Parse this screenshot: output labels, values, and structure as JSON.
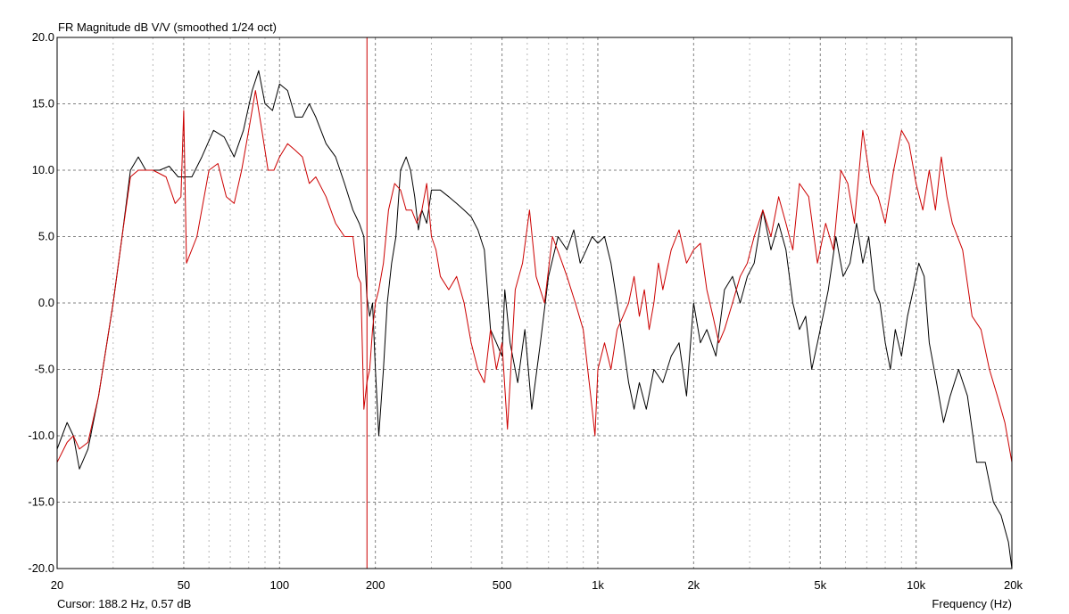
{
  "chart_data": {
    "type": "line",
    "title": "FR Magnitude dB V/V (smoothed 1/24 oct)",
    "xlabel": "Frequency (Hz)",
    "ylabel": "",
    "x_scale": "log",
    "xlim": [
      20,
      20000
    ],
    "ylim": [
      -20,
      20
    ],
    "grid": true,
    "x_major_ticks": [
      20,
      50,
      100,
      200,
      500,
      1000,
      2000,
      5000,
      10000,
      20000
    ],
    "x_tick_labels": [
      "20",
      "50",
      "100",
      "200",
      "500",
      "1k",
      "2k",
      "5k",
      "10k",
      "20k"
    ],
    "x_minor_ticks": [
      30,
      40,
      60,
      70,
      80,
      90,
      300,
      400,
      600,
      700,
      800,
      900,
      3000,
      4000,
      6000,
      7000,
      8000,
      9000
    ],
    "y_ticks": [
      20,
      15,
      10,
      5,
      0,
      -5,
      -10,
      -15,
      -20
    ],
    "y_tick_labels": [
      "20.0",
      "15.0",
      "10.0",
      "5.0",
      "0.0",
      "-5.0",
      "-10.0",
      "-15.0",
      "-20.0"
    ],
    "cursor": {
      "frequency": 188.2,
      "value": 0.57,
      "label": "Cursor: 188.2 Hz, 0.57 dB",
      "color": "#cc0000"
    },
    "series": [
      {
        "color": "#000000",
        "points": [
          [
            20,
            -11
          ],
          [
            21.5,
            -9
          ],
          [
            22.5,
            -10
          ],
          [
            23.5,
            -12.5
          ],
          [
            25,
            -11
          ],
          [
            27,
            -7
          ],
          [
            30,
            0
          ],
          [
            32,
            5
          ],
          [
            34,
            10
          ],
          [
            36,
            11
          ],
          [
            38,
            10
          ],
          [
            42,
            10
          ],
          [
            45,
            10.3
          ],
          [
            48,
            9.5
          ],
          [
            53,
            9.5
          ],
          [
            57,
            11
          ],
          [
            62,
            13
          ],
          [
            67,
            12.5
          ],
          [
            72,
            11
          ],
          [
            77,
            13
          ],
          [
            82,
            16
          ],
          [
            86,
            17.5
          ],
          [
            90,
            15
          ],
          [
            95,
            14.5
          ],
          [
            100,
            16.5
          ],
          [
            106,
            16
          ],
          [
            112,
            14
          ],
          [
            118,
            14
          ],
          [
            124,
            15
          ],
          [
            130,
            14
          ],
          [
            140,
            12
          ],
          [
            150,
            11
          ],
          [
            160,
            9
          ],
          [
            170,
            7
          ],
          [
            178,
            6
          ],
          [
            184,
            5
          ],
          [
            188,
            0.5
          ],
          [
            192,
            -1
          ],
          [
            196,
            0
          ],
          [
            200,
            -5
          ],
          [
            205,
            -10
          ],
          [
            212,
            -5
          ],
          [
            218,
            0
          ],
          [
            225,
            3
          ],
          [
            232,
            5
          ],
          [
            240,
            10
          ],
          [
            250,
            11
          ],
          [
            258,
            10
          ],
          [
            266,
            8
          ],
          [
            273,
            5.5
          ],
          [
            280,
            7
          ],
          [
            290,
            6
          ],
          [
            300,
            8.5
          ],
          [
            320,
            8.5
          ],
          [
            340,
            8
          ],
          [
            360,
            7.5
          ],
          [
            380,
            7
          ],
          [
            400,
            6.5
          ],
          [
            420,
            5.5
          ],
          [
            440,
            4
          ],
          [
            460,
            -2
          ],
          [
            480,
            -3
          ],
          [
            500,
            -4
          ],
          [
            510,
            1
          ],
          [
            530,
            -3
          ],
          [
            560,
            -6
          ],
          [
            590,
            -2
          ],
          [
            600,
            -4
          ],
          [
            620,
            -8
          ],
          [
            660,
            -3
          ],
          [
            700,
            2
          ],
          [
            750,
            5
          ],
          [
            800,
            4
          ],
          [
            840,
            5.5
          ],
          [
            880,
            3
          ],
          [
            920,
            4
          ],
          [
            960,
            5
          ],
          [
            1000,
            4.5
          ],
          [
            1050,
            5
          ],
          [
            1100,
            3
          ],
          [
            1150,
            0
          ],
          [
            1200,
            -3
          ],
          [
            1250,
            -6
          ],
          [
            1300,
            -8
          ],
          [
            1350,
            -6
          ],
          [
            1420,
            -8
          ],
          [
            1500,
            -5
          ],
          [
            1600,
            -6
          ],
          [
            1700,
            -4
          ],
          [
            1800,
            -3
          ],
          [
            1900,
            -7
          ],
          [
            2000,
            0
          ],
          [
            2100,
            -3
          ],
          [
            2200,
            -2
          ],
          [
            2350,
            -4
          ],
          [
            2500,
            1
          ],
          [
            2650,
            2
          ],
          [
            2800,
            0
          ],
          [
            2950,
            2
          ],
          [
            3100,
            3
          ],
          [
            3300,
            7
          ],
          [
            3500,
            4
          ],
          [
            3700,
            6
          ],
          [
            3900,
            4
          ],
          [
            4100,
            0
          ],
          [
            4300,
            -2
          ],
          [
            4500,
            -1
          ],
          [
            4700,
            -5
          ],
          [
            4900,
            -3
          ],
          [
            5100,
            -1
          ],
          [
            5300,
            1
          ],
          [
            5600,
            5
          ],
          [
            5900,
            2
          ],
          [
            6200,
            3
          ],
          [
            6500,
            6
          ],
          [
            6800,
            3
          ],
          [
            7100,
            5
          ],
          [
            7400,
            1
          ],
          [
            7700,
            0
          ],
          [
            8000,
            -3
          ],
          [
            8300,
            -5
          ],
          [
            8600,
            -2
          ],
          [
            9000,
            -4
          ],
          [
            9400,
            -1
          ],
          [
            9800,
            1
          ],
          [
            10200,
            3
          ],
          [
            10600,
            2
          ],
          [
            11000,
            -3
          ],
          [
            11600,
            -6
          ],
          [
            12200,
            -9
          ],
          [
            12800,
            -7
          ],
          [
            13600,
            -5
          ],
          [
            14500,
            -7
          ],
          [
            15500,
            -12
          ],
          [
            16500,
            -12
          ],
          [
            17500,
            -15
          ],
          [
            18500,
            -16
          ],
          [
            19500,
            -18
          ],
          [
            20000,
            -20
          ]
        ]
      },
      {
        "color": "#cc0000",
        "points": [
          [
            20,
            -12
          ],
          [
            21.5,
            -10.5
          ],
          [
            22.5,
            -10
          ],
          [
            23.5,
            -11
          ],
          [
            25,
            -10.5
          ],
          [
            27,
            -7
          ],
          [
            30,
            0
          ],
          [
            32,
            5
          ],
          [
            34,
            9.5
          ],
          [
            36,
            10
          ],
          [
            40,
            10
          ],
          [
            44,
            9.5
          ],
          [
            47,
            7.5
          ],
          [
            49,
            8
          ],
          [
            50,
            14.5
          ],
          [
            51,
            3
          ],
          [
            55,
            5
          ],
          [
            60,
            10
          ],
          [
            64,
            10.5
          ],
          [
            68,
            8
          ],
          [
            72,
            7.5
          ],
          [
            76,
            10
          ],
          [
            80,
            13
          ],
          [
            84,
            16
          ],
          [
            88,
            13
          ],
          [
            92,
            10
          ],
          [
            96,
            10
          ],
          [
            100,
            11
          ],
          [
            106,
            12
          ],
          [
            112,
            11.5
          ],
          [
            118,
            11
          ],
          [
            124,
            9
          ],
          [
            130,
            9.5
          ],
          [
            140,
            8
          ],
          [
            150,
            6
          ],
          [
            160,
            5
          ],
          [
            170,
            5
          ],
          [
            176,
            2
          ],
          [
            180,
            1.5
          ],
          [
            184,
            -8
          ],
          [
            188,
            -6
          ],
          [
            192,
            -5
          ],
          [
            196,
            -2
          ],
          [
            200,
            0
          ],
          [
            205,
            1
          ],
          [
            212,
            3
          ],
          [
            220,
            7
          ],
          [
            230,
            9
          ],
          [
            240,
            8.5
          ],
          [
            250,
            7
          ],
          [
            260,
            7
          ],
          [
            270,
            6
          ],
          [
            280,
            7
          ],
          [
            290,
            9
          ],
          [
            300,
            5
          ],
          [
            310,
            4
          ],
          [
            320,
            2
          ],
          [
            340,
            1
          ],
          [
            360,
            2
          ],
          [
            380,
            0
          ],
          [
            400,
            -3
          ],
          [
            420,
            -5
          ],
          [
            440,
            -6
          ],
          [
            460,
            -2
          ],
          [
            480,
            -5
          ],
          [
            500,
            -3
          ],
          [
            520,
            -9.5
          ],
          [
            550,
            1
          ],
          [
            580,
            3
          ],
          [
            610,
            7
          ],
          [
            640,
            2
          ],
          [
            680,
            0
          ],
          [
            720,
            5
          ],
          [
            760,
            3.5
          ],
          [
            800,
            2
          ],
          [
            850,
            0
          ],
          [
            900,
            -2
          ],
          [
            950,
            -7
          ],
          [
            980,
            -10
          ],
          [
            1000,
            -5
          ],
          [
            1050,
            -3
          ],
          [
            1100,
            -5
          ],
          [
            1150,
            -2
          ],
          [
            1200,
            -1
          ],
          [
            1250,
            0
          ],
          [
            1300,
            2
          ],
          [
            1350,
            -1
          ],
          [
            1400,
            1
          ],
          [
            1450,
            -2
          ],
          [
            1500,
            0
          ],
          [
            1550,
            3
          ],
          [
            1600,
            1
          ],
          [
            1700,
            4
          ],
          [
            1800,
            5.5
          ],
          [
            1900,
            3
          ],
          [
            2000,
            4
          ],
          [
            2100,
            4.5
          ],
          [
            2200,
            1
          ],
          [
            2300,
            -1
          ],
          [
            2400,
            -3
          ],
          [
            2500,
            -2
          ],
          [
            2650,
            0
          ],
          [
            2800,
            2
          ],
          [
            2950,
            3
          ],
          [
            3100,
            5
          ],
          [
            3300,
            7
          ],
          [
            3500,
            5
          ],
          [
            3700,
            8
          ],
          [
            3900,
            6
          ],
          [
            4100,
            4
          ],
          [
            4300,
            9
          ],
          [
            4600,
            8
          ],
          [
            4900,
            3
          ],
          [
            5200,
            6
          ],
          [
            5500,
            4
          ],
          [
            5800,
            10
          ],
          [
            6100,
            9
          ],
          [
            6400,
            6
          ],
          [
            6800,
            13
          ],
          [
            7200,
            9
          ],
          [
            7600,
            8
          ],
          [
            8000,
            6
          ],
          [
            8500,
            10
          ],
          [
            9000,
            13
          ],
          [
            9500,
            12
          ],
          [
            10000,
            9
          ],
          [
            10500,
            7
          ],
          [
            11000,
            10
          ],
          [
            11500,
            7
          ],
          [
            12000,
            11
          ],
          [
            12500,
            8
          ],
          [
            13000,
            6
          ],
          [
            14000,
            4
          ],
          [
            15000,
            -1
          ],
          [
            16000,
            -2
          ],
          [
            17000,
            -5
          ],
          [
            18000,
            -7
          ],
          [
            19000,
            -9
          ],
          [
            20000,
            -12
          ]
        ]
      }
    ]
  }
}
